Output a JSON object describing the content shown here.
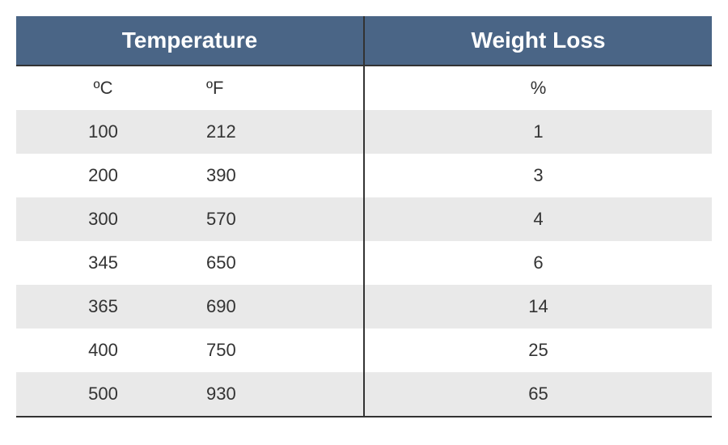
{
  "table": {
    "type": "table",
    "header_bg": "#4a6586",
    "header_text_color": "#ffffff",
    "row_even_bg": "#e9e9e9",
    "row_odd_bg": "#ffffff",
    "border_color": "#333333",
    "headers": {
      "temperature": "Temperature",
      "weight_loss": "Weight Loss"
    },
    "subheaders": {
      "celsius": "ºC",
      "fahrenheit": "ºF",
      "percent": "%"
    },
    "rows": [
      {
        "c": "100",
        "f": "212",
        "w": "1"
      },
      {
        "c": "200",
        "f": "390",
        "w": "3"
      },
      {
        "c": "300",
        "f": "570",
        "w": "4"
      },
      {
        "c": "345",
        "f": "650",
        "w": "6"
      },
      {
        "c": "365",
        "f": "690",
        "w": "14"
      },
      {
        "c": "400",
        "f": "750",
        "w": "25"
      },
      {
        "c": "500",
        "f": "930",
        "w": "65"
      }
    ]
  }
}
